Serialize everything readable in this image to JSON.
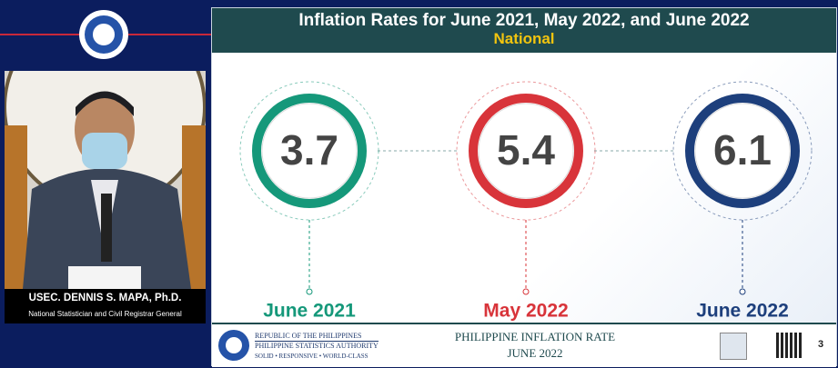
{
  "presenter": {
    "name": "USEC. DENNIS S. MAPA, Ph.D.",
    "position": "National Statistician and Civil Registrar General"
  },
  "slide": {
    "title": "Inflation Rates for June 2021, May 2022, and June 2022",
    "subtitle": "National",
    "items": [
      {
        "value": 3.7,
        "label": "June 2021",
        "color": "#15987a"
      },
      {
        "value": 5.4,
        "label": "May 2022",
        "color": "#d8343a"
      },
      {
        "value": 6.1,
        "label": "June 2022",
        "color": "#1d3f7c"
      }
    ],
    "footer": {
      "agency_lines": [
        "REPUBLIC OF THE PHILIPPINES",
        "PHILIPPINE STATISTICS AUTHORITY",
        "SOLID • RESPONSIVE • WORLD-CLASS"
      ],
      "report_title": "PHILIPPINE INFLATION RATE",
      "report_date": "JUNE 2022",
      "page": 3
    }
  }
}
